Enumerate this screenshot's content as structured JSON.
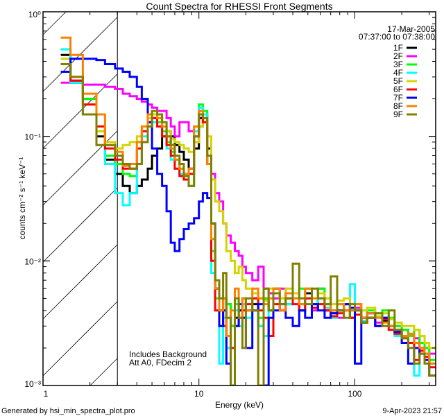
{
  "chart_data": {
    "type": "line",
    "title": "Count Spectra for RHESSI Front Segments",
    "xlabel": "Energy (keV)",
    "ylabel": "counts cm⁻² s⁻¹ keV⁻¹",
    "xscale": "log",
    "yscale": "log",
    "xlim": [
      1,
      330
    ],
    "ylim": [
      0.001,
      1
    ],
    "x_ticks": [
      {
        "value": 1,
        "label": "1"
      },
      {
        "value": 10,
        "label": "10"
      },
      {
        "value": 100,
        "label": "100"
      }
    ],
    "y_ticks": [
      {
        "value": 1,
        "label": "10⁰"
      },
      {
        "value": 0.1,
        "label": "10⁻¹"
      },
      {
        "value": 0.01,
        "label": "10⁻²"
      },
      {
        "value": 0.001,
        "label": "10⁻³"
      }
    ],
    "hatched_region_keV": [
      1,
      3
    ],
    "legend_placement": "top-right",
    "legend_header": [
      "17-Mar-2005",
      "07:37:00 to 07:38:00"
    ],
    "annotations": [
      "Includes Background",
      "Att A0, FDecim 2"
    ],
    "energy_edges": [
      1.3,
      1.5,
      1.8,
      2.2,
      2.5,
      2.9,
      3.25,
      3.6,
      4,
      4.3,
      4.7,
      5,
      5.4,
      5.8,
      6.2,
      6.6,
      7,
      7.5,
      8,
      8.6,
      9.3,
      10,
      10.6,
      11.3,
      12,
      12.7,
      13.5,
      14.3,
      15,
      16,
      17,
      18,
      19,
      20,
      22,
      24,
      26,
      28,
      30,
      33,
      36,
      40,
      44,
      48,
      53,
      58,
      64,
      70,
      77,
      85,
      93,
      100,
      110,
      120,
      135,
      150,
      165,
      180,
      200,
      220,
      240,
      260,
      280,
      300,
      330
    ],
    "series": [
      {
        "name": "1F",
        "color": "#000000",
        "values": [
          0.45,
          0.27,
          0.2,
          0.1,
          0.065,
          0.05,
          0.04,
          0.035,
          0.04,
          0.045,
          0.055,
          0.07,
          0.08,
          0.1,
          0.11,
          0.1,
          0.085,
          0.075,
          0.065,
          0.055,
          0.08,
          0.14,
          0.15,
          0.08,
          0.02,
          0.006,
          0.004,
          0.005,
          0.0045,
          0.003,
          0.0035,
          0.004,
          0.005,
          0.004,
          0.0045,
          0.003,
          0.005,
          0.004,
          0.006,
          0.005,
          0.0045,
          0.005,
          0.004,
          0.0055,
          0.0045,
          0.005,
          0.004,
          0.0038,
          0.004,
          0.0045,
          0.0035,
          0.004,
          0.0032,
          0.0035,
          0.003,
          0.0033,
          0.003,
          0.0028,
          0.0025,
          0.0025,
          0.0022,
          0.002,
          0.0018,
          0.0015
        ]
      },
      {
        "name": "2F",
        "color": "#ff00ff",
        "values": [
          0.27,
          0.28,
          0.26,
          0.26,
          0.25,
          0.24,
          0.22,
          0.21,
          0.2,
          0.19,
          0.18,
          0.17,
          0.16,
          0.16,
          0.14,
          0.12,
          0.1,
          0.13,
          0.13,
          0.11,
          0.09,
          0.12,
          0.14,
          0.07,
          0.05,
          0.035,
          0.03,
          0.02,
          0.016,
          0.014,
          0.012,
          0.011,
          0.009,
          0.008,
          0.007,
          0.009,
          0.006,
          0.0055,
          0.005,
          0.006,
          0.005,
          0.005,
          0.0045,
          0.005,
          0.004,
          0.006,
          0.0045,
          0.004,
          0.0035,
          0.0045,
          0.004,
          0.0042,
          0.0035,
          0.0038,
          0.0032,
          0.0035,
          0.003,
          0.003,
          0.0028,
          0.0026,
          0.0024,
          0.0022,
          0.002,
          0.0018
        ]
      },
      {
        "name": "3F",
        "color": "#00ff00",
        "values": [
          0.5,
          0.3,
          0.2,
          0.11,
          0.07,
          0.06,
          0.05,
          0.048,
          0.06,
          0.09,
          0.12,
          0.14,
          0.13,
          0.11,
          0.09,
          0.075,
          0.065,
          0.055,
          0.05,
          0.04,
          0.12,
          0.18,
          0.16,
          0.06,
          0.012,
          0.005,
          0.003,
          0.004,
          0.0045,
          0.003,
          0.0045,
          0.0035,
          0.005,
          0.004,
          0.005,
          0.0035,
          0.005,
          0.004,
          0.006,
          0.005,
          0.0055,
          0.005,
          0.006,
          0.005,
          0.0045,
          0.006,
          0.005,
          0.004,
          0.0045,
          0.004,
          0.004,
          0.0045,
          0.0035,
          0.004,
          0.0038,
          0.004,
          0.0035,
          0.003,
          0.0028,
          0.0025,
          0.0028,
          0.0022,
          0.002,
          0.0016
        ]
      },
      {
        "name": "4F",
        "color": "#00ffff",
        "values": [
          0.5,
          0.27,
          0.15,
          0.085,
          0.06,
          0.035,
          0.028,
          0.035,
          0.06,
          0.1,
          0.12,
          0.13,
          0.12,
          0.1,
          0.08,
          0.065,
          0.055,
          0.05,
          0.045,
          0.05,
          0.11,
          0.17,
          0.15,
          0.06,
          0.008,
          0.004,
          0.0015,
          0.0035,
          0.002,
          0.001,
          0.004,
          0.003,
          0.0045,
          0.0035,
          0.004,
          0.003,
          0.0025,
          0.004,
          0.0055,
          0.005,
          0.0045,
          0.005,
          0.004,
          0.006,
          0.0045,
          0.005,
          0.0042,
          0.0035,
          0.004,
          0.0045,
          0.0065,
          0.004,
          0.0033,
          0.0035,
          0.003,
          0.0035,
          0.003,
          0.0025,
          0.0024,
          0.0022,
          0.0012,
          0.002,
          0.0018,
          0.0015
        ]
      },
      {
        "name": "5F",
        "color": "#d4d400",
        "values": [
          0.42,
          0.3,
          0.18,
          0.11,
          0.09,
          0.08,
          0.085,
          0.09,
          0.1,
          0.12,
          0.14,
          0.15,
          0.14,
          0.12,
          0.11,
          0.095,
          0.09,
          0.085,
          0.08,
          0.075,
          0.09,
          0.12,
          0.13,
          0.1,
          0.045,
          0.03,
          0.025,
          0.02,
          0.012,
          0.01,
          0.008,
          0.009,
          0.007,
          0.006,
          0.0055,
          0.005,
          0.0048,
          0.006,
          0.0055,
          0.005,
          0.006,
          0.0055,
          0.005,
          0.006,
          0.005,
          0.0055,
          0.005,
          0.0045,
          0.0048,
          0.005,
          0.0042,
          0.0045,
          0.004,
          0.0042,
          0.0036,
          0.0038,
          0.0034,
          0.0032,
          0.003,
          0.003,
          0.0028,
          0.0025,
          0.0022,
          0.002
        ]
      },
      {
        "name": "6F",
        "color": "#ff0000",
        "values": [
          0.38,
          0.28,
          0.18,
          0.12,
          0.08,
          0.065,
          0.055,
          0.055,
          0.08,
          0.11,
          0.13,
          0.14,
          0.12,
          0.1,
          0.085,
          0.07,
          0.055,
          0.048,
          0.045,
          0.05,
          0.1,
          0.15,
          0.13,
          0.06,
          0.01,
          0.004,
          0.005,
          0.003,
          0.0025,
          0.002,
          0.003,
          0.0035,
          0.004,
          0.0045,
          0.005,
          0.004,
          0.0035,
          0.0025,
          0.0045,
          0.004,
          0.005,
          0.0045,
          0.004,
          0.005,
          0.0042,
          0.0045,
          0.004,
          0.0036,
          0.0038,
          0.004,
          0.0035,
          0.0037,
          0.0032,
          0.0035,
          0.003,
          0.0034,
          0.0028,
          0.0026,
          0.0024,
          0.0022,
          0.0016,
          0.0019,
          0.0017,
          0.0014
        ]
      },
      {
        "name": "7F",
        "color": "#0000ff",
        "values": [
          0.33,
          0.42,
          0.42,
          0.41,
          0.38,
          0.35,
          0.33,
          0.3,
          0.25,
          0.2,
          0.13,
          0.08,
          0.05,
          0.04,
          0.025,
          0.014,
          0.012,
          0.015,
          0.018,
          0.02,
          0.022,
          0.03,
          0.035,
          0.032,
          0.02,
          0.006,
          0.003,
          0.004,
          0.0015,
          0.001,
          0.003,
          0.0045,
          0.0035,
          0.002,
          0.004,
          0.0045,
          0.001,
          0.0035,
          0.004,
          0.0045,
          0.0035,
          0.003,
          0.004,
          0.0035,
          0.0045,
          0.004,
          0.0035,
          0.0038,
          0.004,
          0.0045,
          0.0042,
          0.0015,
          0.0035,
          0.0038,
          0.003,
          0.0035,
          0.003,
          0.0027,
          0.0022,
          0.0015,
          0.002,
          0.0018,
          0.0016,
          0.0012
        ]
      },
      {
        "name": "8F",
        "color": "#ff8000",
        "values": [
          0.62,
          0.45,
          0.22,
          0.15,
          0.085,
          0.075,
          0.058,
          0.06,
          0.09,
          0.12,
          0.15,
          0.16,
          0.14,
          0.12,
          0.1,
          0.08,
          0.065,
          0.055,
          0.05,
          0.055,
          0.12,
          0.16,
          0.14,
          0.06,
          0.015,
          0.006,
          0.004,
          0.005,
          0.0025,
          0.004,
          0.006,
          0.0035,
          0.005,
          0.004,
          0.006,
          0.005,
          0.0045,
          0.005,
          0.006,
          0.004,
          0.0055,
          0.005,
          0.0045,
          0.006,
          0.005,
          0.005,
          0.0045,
          0.004,
          0.0045,
          0.004,
          0.004,
          0.0045,
          0.0035,
          0.0038,
          0.0035,
          0.0032,
          0.003,
          0.0028,
          0.0025,
          0.0026,
          0.0022,
          0.002,
          0.0018,
          0.0015
        ]
      },
      {
        "name": "9F",
        "color": "#808000",
        "values": [
          0.38,
          0.3,
          0.15,
          0.085,
          0.085,
          0.07,
          0.06,
          0.055,
          0.06,
          0.09,
          0.12,
          0.16,
          0.15,
          0.13,
          0.1,
          0.085,
          0.07,
          0.06,
          0.048,
          0.04,
          0.1,
          0.15,
          0.14,
          0.07,
          0.02,
          0.007,
          0.005,
          0.008,
          0.0035,
          0.001,
          0.005,
          0.0035,
          0.002,
          0.005,
          0.004,
          0.0008,
          0.006,
          0.004,
          0.0055,
          0.0045,
          0.005,
          0.0095,
          0.005,
          0.0045,
          0.006,
          0.005,
          0.0045,
          0.0075,
          0.004,
          0.0035,
          0.0045,
          0.004,
          0.0032,
          0.0035,
          0.0038,
          0.003,
          0.004,
          0.0028,
          0.0024,
          0.002,
          0.0015,
          0.0018,
          0.0015,
          0.0012
        ]
      }
    ]
  },
  "footer": {
    "generated_by": "Generated by hsi_min_spectra_plot.pro",
    "timestamp": "9-Apr-2023 21:57"
  }
}
